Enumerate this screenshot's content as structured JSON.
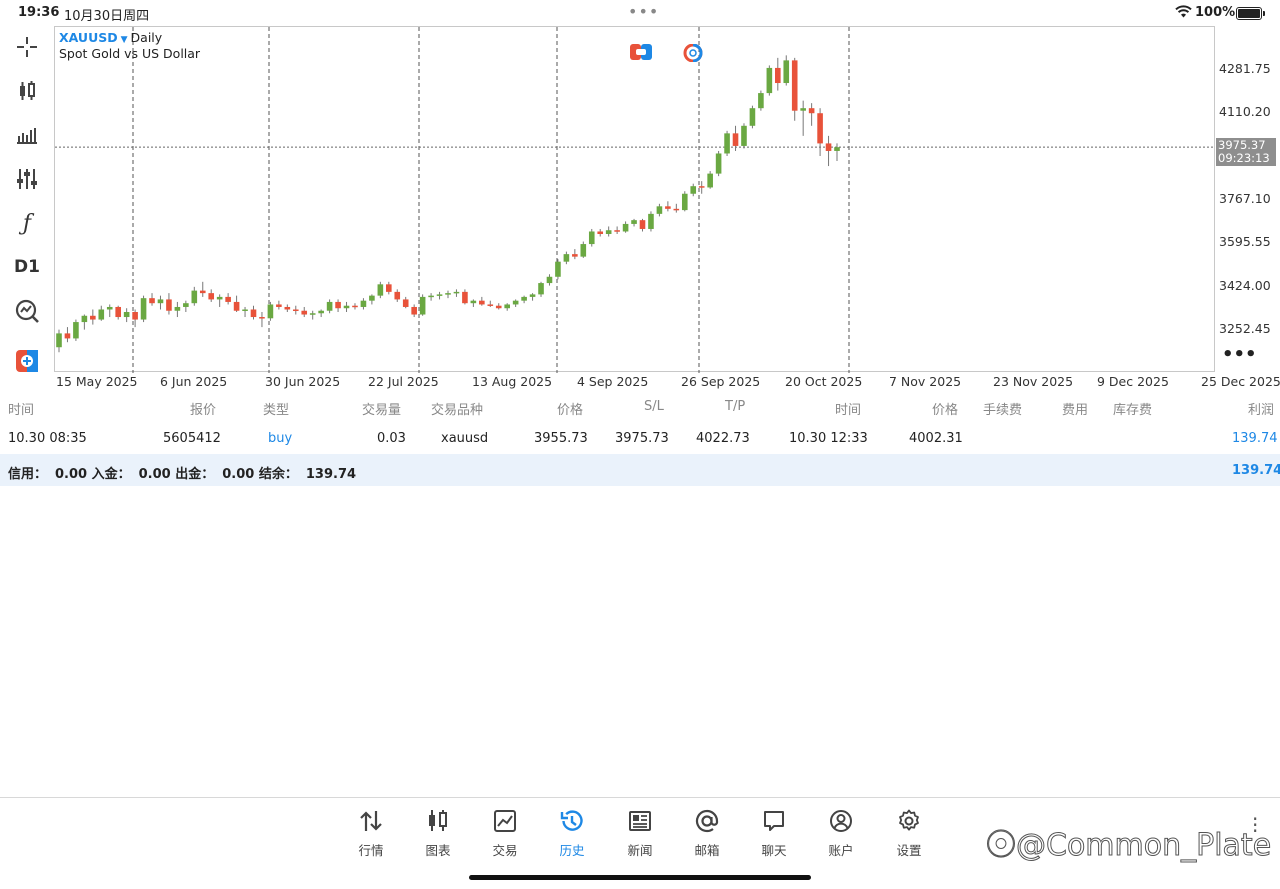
{
  "status_bar": {
    "time": "19:36",
    "date": "10月30日周四",
    "battery": "100%"
  },
  "chart": {
    "symbol": "XAUUSD",
    "timeframe": "Daily",
    "description": "Spot Gold vs US Dollar",
    "current_price": "3975.37",
    "countdown": "09:23:13",
    "y_labels": [
      "4281.75",
      "4110.20",
      "3767.10",
      "3595.55",
      "3424.00",
      "3252.45"
    ],
    "x_labels": [
      "15 May 2025",
      "6 Jun 2025",
      "30 Jun 2025",
      "22 Jul 2025",
      "13 Aug 2025",
      "4 Sep 2025",
      "26 Sep 2025",
      "20 Oct 2025",
      "7 Nov 2025",
      "23 Nov 2025",
      "9 Dec 2025",
      "25 Dec 2025"
    ],
    "toolbar_d1": "D1",
    "colors": {
      "bull": "#6aa842",
      "bear": "#e8523a",
      "price_box": "#8e8e8e",
      "accent": "#1e88e5"
    }
  },
  "chart_data": {
    "type": "candlestick",
    "symbol": "XAUUSD",
    "timeframe": "Daily",
    "ylim": [
      3200,
      4340
    ],
    "candles": [
      {
        "o": 3180,
        "h": 3250,
        "l": 3160,
        "c": 3235
      },
      {
        "o": 3235,
        "h": 3260,
        "l": 3200,
        "c": 3215
      },
      {
        "o": 3215,
        "h": 3290,
        "l": 3205,
        "c": 3280
      },
      {
        "o": 3280,
        "h": 3310,
        "l": 3250,
        "c": 3305
      },
      {
        "o": 3305,
        "h": 3330,
        "l": 3270,
        "c": 3290
      },
      {
        "o": 3290,
        "h": 3345,
        "l": 3285,
        "c": 3330
      },
      {
        "o": 3330,
        "h": 3350,
        "l": 3300,
        "c": 3340
      },
      {
        "o": 3340,
        "h": 3345,
        "l": 3290,
        "c": 3300
      },
      {
        "o": 3300,
        "h": 3335,
        "l": 3280,
        "c": 3320
      },
      {
        "o": 3320,
        "h": 3330,
        "l": 3260,
        "c": 3290
      },
      {
        "o": 3290,
        "h": 3385,
        "l": 3280,
        "c": 3375
      },
      {
        "o": 3375,
        "h": 3395,
        "l": 3345,
        "c": 3355
      },
      {
        "o": 3355,
        "h": 3385,
        "l": 3330,
        "c": 3370
      },
      {
        "o": 3370,
        "h": 3395,
        "l": 3310,
        "c": 3325
      },
      {
        "o": 3325,
        "h": 3360,
        "l": 3300,
        "c": 3340
      },
      {
        "o": 3340,
        "h": 3365,
        "l": 3320,
        "c": 3355
      },
      {
        "o": 3355,
        "h": 3420,
        "l": 3345,
        "c": 3405
      },
      {
        "o": 3405,
        "h": 3440,
        "l": 3380,
        "c": 3395
      },
      {
        "o": 3395,
        "h": 3410,
        "l": 3360,
        "c": 3370
      },
      {
        "o": 3370,
        "h": 3390,
        "l": 3340,
        "c": 3380
      },
      {
        "o": 3380,
        "h": 3395,
        "l": 3350,
        "c": 3360
      },
      {
        "o": 3360,
        "h": 3385,
        "l": 3320,
        "c": 3325
      },
      {
        "o": 3325,
        "h": 3340,
        "l": 3300,
        "c": 3330
      },
      {
        "o": 3330,
        "h": 3345,
        "l": 3290,
        "c": 3300
      },
      {
        "o": 3300,
        "h": 3320,
        "l": 3260,
        "c": 3295
      },
      {
        "o": 3295,
        "h": 3360,
        "l": 3285,
        "c": 3350
      },
      {
        "o": 3350,
        "h": 3365,
        "l": 3330,
        "c": 3340
      },
      {
        "o": 3340,
        "h": 3350,
        "l": 3320,
        "c": 3330
      },
      {
        "o": 3330,
        "h": 3345,
        "l": 3310,
        "c": 3325
      },
      {
        "o": 3325,
        "h": 3340,
        "l": 3300,
        "c": 3310
      },
      {
        "o": 3310,
        "h": 3325,
        "l": 3290,
        "c": 3315
      },
      {
        "o": 3315,
        "h": 3330,
        "l": 3300,
        "c": 3325
      },
      {
        "o": 3325,
        "h": 3370,
        "l": 3315,
        "c": 3360
      },
      {
        "o": 3360,
        "h": 3370,
        "l": 3320,
        "c": 3335
      },
      {
        "o": 3335,
        "h": 3360,
        "l": 3320,
        "c": 3345
      },
      {
        "o": 3345,
        "h": 3355,
        "l": 3330,
        "c": 3340
      },
      {
        "o": 3340,
        "h": 3375,
        "l": 3330,
        "c": 3365
      },
      {
        "o": 3365,
        "h": 3390,
        "l": 3350,
        "c": 3385
      },
      {
        "o": 3385,
        "h": 3440,
        "l": 3375,
        "c": 3430
      },
      {
        "o": 3430,
        "h": 3440,
        "l": 3390,
        "c": 3400
      },
      {
        "o": 3400,
        "h": 3410,
        "l": 3360,
        "c": 3370
      },
      {
        "o": 3370,
        "h": 3380,
        "l": 3335,
        "c": 3340
      },
      {
        "o": 3340,
        "h": 3350,
        "l": 3300,
        "c": 3310
      },
      {
        "o": 3310,
        "h": 3390,
        "l": 3305,
        "c": 3380
      },
      {
        "o": 3380,
        "h": 3395,
        "l": 3365,
        "c": 3385
      },
      {
        "o": 3385,
        "h": 3400,
        "l": 3370,
        "c": 3390
      },
      {
        "o": 3390,
        "h": 3405,
        "l": 3375,
        "c": 3395
      },
      {
        "o": 3395,
        "h": 3410,
        "l": 3380,
        "c": 3400
      },
      {
        "o": 3400,
        "h": 3410,
        "l": 3350,
        "c": 3355
      },
      {
        "o": 3355,
        "h": 3370,
        "l": 3340,
        "c": 3365
      },
      {
        "o": 3365,
        "h": 3380,
        "l": 3345,
        "c": 3350
      },
      {
        "o": 3350,
        "h": 3365,
        "l": 3340,
        "c": 3345
      },
      {
        "o": 3345,
        "h": 3355,
        "l": 3330,
        "c": 3335
      },
      {
        "o": 3335,
        "h": 3355,
        "l": 3325,
        "c": 3350
      },
      {
        "o": 3350,
        "h": 3370,
        "l": 3340,
        "c": 3365
      },
      {
        "o": 3365,
        "h": 3385,
        "l": 3355,
        "c": 3380
      },
      {
        "o": 3380,
        "h": 3395,
        "l": 3365,
        "c": 3390
      },
      {
        "o": 3390,
        "h": 3440,
        "l": 3380,
        "c": 3435
      },
      {
        "o": 3435,
        "h": 3470,
        "l": 3425,
        "c": 3460
      },
      {
        "o": 3460,
        "h": 3530,
        "l": 3450,
        "c": 3520
      },
      {
        "o": 3520,
        "h": 3560,
        "l": 3510,
        "c": 3550
      },
      {
        "o": 3550,
        "h": 3570,
        "l": 3530,
        "c": 3540
      },
      {
        "o": 3540,
        "h": 3600,
        "l": 3535,
        "c": 3590
      },
      {
        "o": 3590,
        "h": 3650,
        "l": 3580,
        "c": 3640
      },
      {
        "o": 3640,
        "h": 3650,
        "l": 3620,
        "c": 3630
      },
      {
        "o": 3630,
        "h": 3660,
        "l": 3620,
        "c": 3645
      },
      {
        "o": 3645,
        "h": 3660,
        "l": 3630,
        "c": 3640
      },
      {
        "o": 3640,
        "h": 3680,
        "l": 3635,
        "c": 3670
      },
      {
        "o": 3670,
        "h": 3690,
        "l": 3660,
        "c": 3685
      },
      {
        "o": 3685,
        "h": 3690,
        "l": 3640,
        "c": 3650
      },
      {
        "o": 3650,
        "h": 3720,
        "l": 3640,
        "c": 3710
      },
      {
        "o": 3710,
        "h": 3750,
        "l": 3700,
        "c": 3740
      },
      {
        "o": 3740,
        "h": 3760,
        "l": 3720,
        "c": 3730
      },
      {
        "o": 3730,
        "h": 3750,
        "l": 3715,
        "c": 3725
      },
      {
        "o": 3725,
        "h": 3800,
        "l": 3720,
        "c": 3790
      },
      {
        "o": 3790,
        "h": 3830,
        "l": 3780,
        "c": 3820
      },
      {
        "o": 3820,
        "h": 3840,
        "l": 3790,
        "c": 3815
      },
      {
        "o": 3815,
        "h": 3880,
        "l": 3810,
        "c": 3870
      },
      {
        "o": 3870,
        "h": 3960,
        "l": 3860,
        "c": 3950
      },
      {
        "o": 3950,
        "h": 4040,
        "l": 3940,
        "c": 4030
      },
      {
        "o": 4030,
        "h": 4060,
        "l": 3960,
        "c": 3980
      },
      {
        "o": 3980,
        "h": 4070,
        "l": 3970,
        "c": 4060
      },
      {
        "o": 4060,
        "h": 4140,
        "l": 4050,
        "c": 4130
      },
      {
        "o": 4130,
        "h": 4200,
        "l": 4120,
        "c": 4190
      },
      {
        "o": 4190,
        "h": 4300,
        "l": 4180,
        "c": 4290
      },
      {
        "o": 4290,
        "h": 4330,
        "l": 4200,
        "c": 4230
      },
      {
        "o": 4230,
        "h": 4340,
        "l": 4220,
        "c": 4320
      },
      {
        "o": 4320,
        "h": 4330,
        "l": 4080,
        "c": 4120
      },
      {
        "o": 4120,
        "h": 4160,
        "l": 4020,
        "c": 4130
      },
      {
        "o": 4130,
        "h": 4150,
        "l": 4060,
        "c": 4110
      },
      {
        "o": 4110,
        "h": 4130,
        "l": 3940,
        "c": 3990
      },
      {
        "o": 3990,
        "h": 4020,
        "l": 3900,
        "c": 3960
      },
      {
        "o": 3960,
        "h": 3990,
        "l": 3920,
        "c": 3975
      }
    ]
  },
  "table": {
    "headers": [
      "时间",
      "报价",
      "类型",
      "交易量",
      "交易品种",
      "价格",
      "S/L",
      "T/P",
      "时间",
      "价格",
      "手续费",
      "费用",
      "库存费",
      "利润"
    ],
    "row": {
      "time_open": "10.30 08:35",
      "ticket": "5605412",
      "type": "buy",
      "volume": "0.03",
      "symbol": "xauusd",
      "price_open": "3955.73",
      "sl": "3975.73",
      "tp": "4022.73",
      "time_close": "10.30 12:33",
      "price_close": "4002.31",
      "profit": "139.74"
    },
    "summary": {
      "credit_label": "信用：",
      "credit": "0.00",
      "deposit_label": "入金：",
      "deposit": "0.00",
      "withdraw_label": "出金：",
      "withdraw": "0.00",
      "balance_label": "结余：",
      "balance": "139.74",
      "total": "139.74"
    }
  },
  "tabs": [
    {
      "label": "行情",
      "icon": "arrows-updown-icon"
    },
    {
      "label": "图表",
      "icon": "candles-icon"
    },
    {
      "label": "交易",
      "icon": "trade-chart-icon"
    },
    {
      "label": "历史",
      "icon": "history-icon"
    },
    {
      "label": "新闻",
      "icon": "news-icon"
    },
    {
      "label": "邮箱",
      "icon": "at-icon"
    },
    {
      "label": "聊天",
      "icon": "chat-icon"
    },
    {
      "label": "账户",
      "icon": "account-icon"
    },
    {
      "label": "设置",
      "icon": "gear-icon"
    }
  ],
  "active_tab": "历史",
  "watermark": "@Common_Plate"
}
